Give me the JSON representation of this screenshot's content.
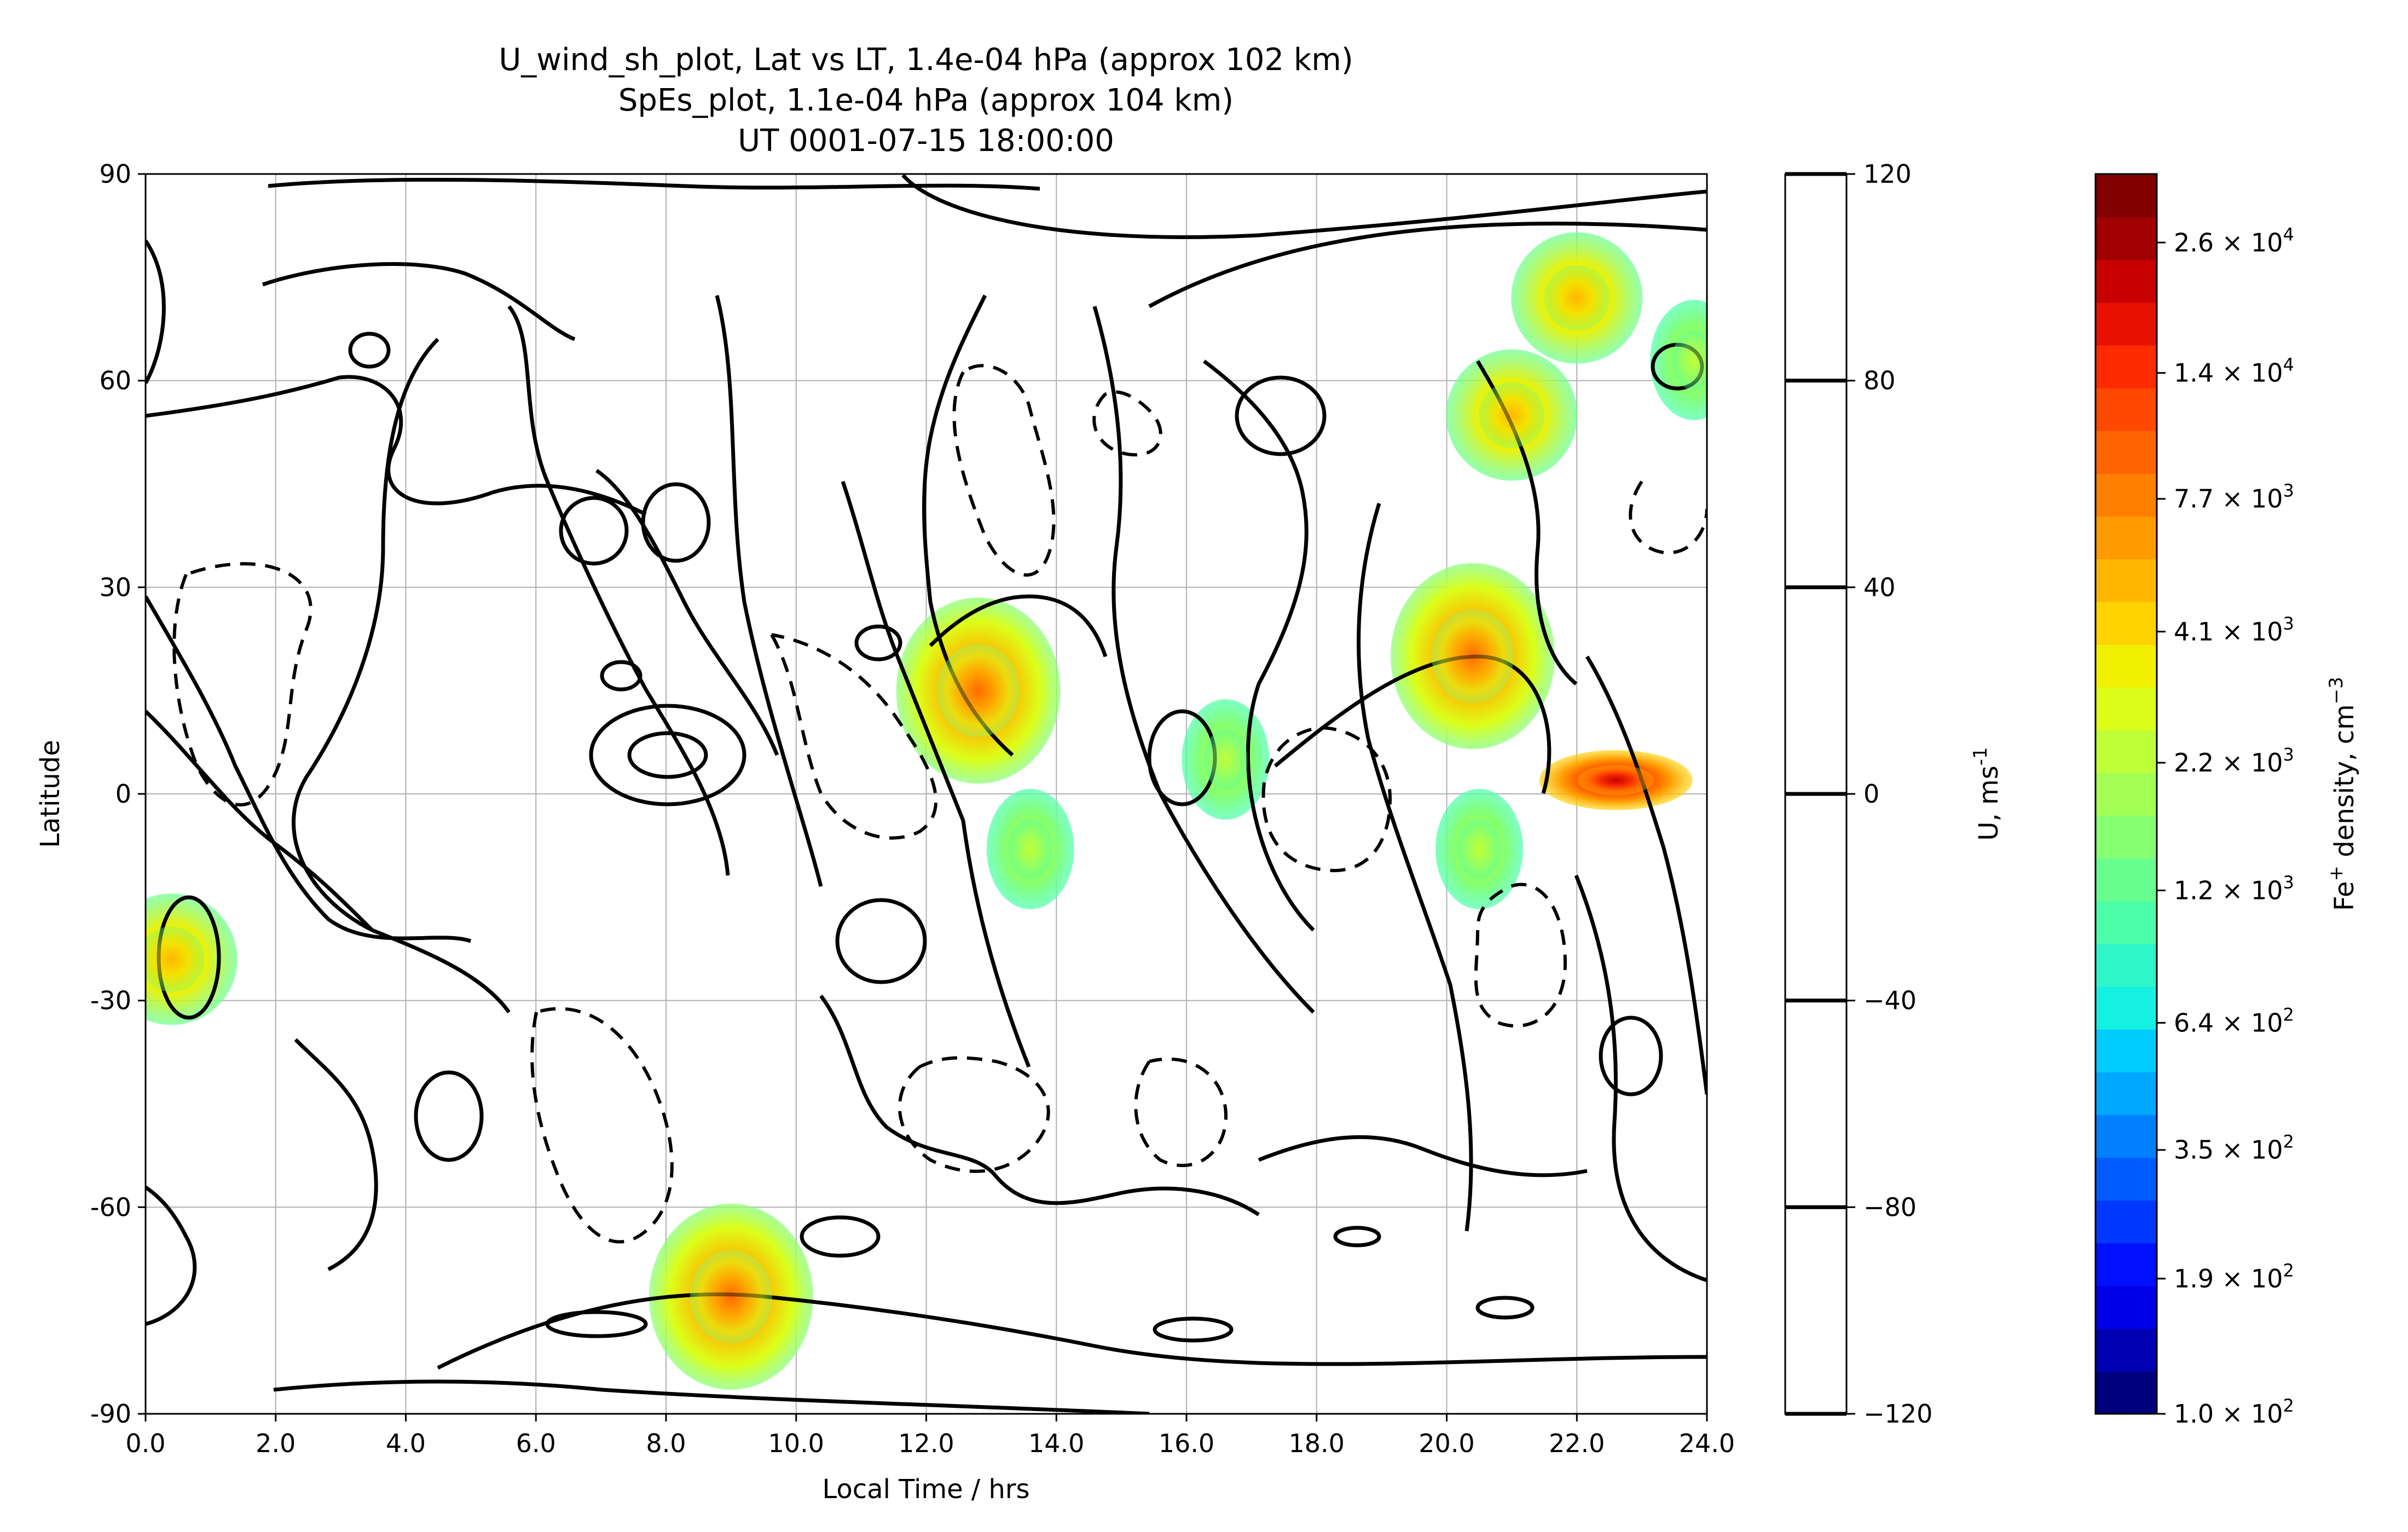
{
  "chart_data": {
    "type": "heatmap",
    "title_lines": [
      "U_wind_sh_plot, Lat vs LT, 1.4e-04 hPa (approx 102 km)",
      "SpEs_plot, 1.1e-04 hPa (approx 104 km)",
      "UT 0001-07-15 18:00:00"
    ],
    "xlabel": "Local Time / hrs",
    "ylabel": "Latitude",
    "xlim": [
      0,
      24
    ],
    "ylim": [
      -90,
      90
    ],
    "xticks": [
      "0.0",
      "2.0",
      "4.0",
      "6.0",
      "8.0",
      "10.0",
      "12.0",
      "14.0",
      "16.0",
      "18.0",
      "20.0",
      "22.0",
      "24.0"
    ],
    "yticks": [
      "-90",
      "-60",
      "-30",
      "0",
      "30",
      "60",
      "90"
    ],
    "grid": true,
    "wind_colorbar": {
      "label": "U, ms",
      "label_sup": "-1",
      "range": [
        -120,
        120
      ],
      "ticks": [
        "−120",
        "−80",
        "−40",
        "0",
        "40",
        "80",
        "120"
      ]
    },
    "density_colorbar": {
      "label_prefix": "Fe",
      "label_sup1": "+",
      "label_mid": " density, cm",
      "label_sup2": "−3",
      "ticks": [
        {
          "mant": "1.0",
          "exp": "2"
        },
        {
          "mant": "1.9",
          "exp": "2"
        },
        {
          "mant": "3.5",
          "exp": "2"
        },
        {
          "mant": "6.4",
          "exp": "2"
        },
        {
          "mant": "1.2",
          "exp": "3"
        },
        {
          "mant": "2.2",
          "exp": "3"
        },
        {
          "mant": "4.1",
          "exp": "3"
        },
        {
          "mant": "7.7",
          "exp": "3"
        },
        {
          "mant": "1.4",
          "exp": "4"
        },
        {
          "mant": "2.6",
          "exp": "4"
        }
      ],
      "colors": [
        "#00007f",
        "#0000b2",
        "#0000e8",
        "#0010ff",
        "#0038ff",
        "#005cff",
        "#0080ff",
        "#00a8ff",
        "#00ccff",
        "#14f0e2",
        "#2ff6c8",
        "#4cffab",
        "#69ff8e",
        "#86ff71",
        "#a3ff54",
        "#c0ff37",
        "#dcff1a",
        "#f0f000",
        "#ffd200",
        "#ffb600",
        "#ff9a00",
        "#ff7f00",
        "#ff6400",
        "#ff4800",
        "#ff2b00",
        "#e81000",
        "#c80000",
        "#a00000",
        "#800000"
      ]
    },
    "density_patches": [
      {
        "lt": 12.8,
        "lat": 15,
        "level": "high"
      },
      {
        "lt": 20.4,
        "lat": 20,
        "level": "high"
      },
      {
        "lt": 22.6,
        "lat": 2,
        "level": "peak"
      },
      {
        "lt": 9.0,
        "lat": -73,
        "level": "high"
      },
      {
        "lt": 0.4,
        "lat": -24,
        "level": "mid"
      },
      {
        "lt": 22.0,
        "lat": 72,
        "level": "mid"
      },
      {
        "lt": 21.0,
        "lat": 55,
        "level": "mid"
      },
      {
        "lt": 16.6,
        "lat": 5,
        "level": "low"
      },
      {
        "lt": 13.6,
        "lat": -8,
        "level": "low"
      },
      {
        "lt": 20.5,
        "lat": -8,
        "level": "low"
      },
      {
        "lt": 23.8,
        "lat": 63,
        "level": "low"
      }
    ]
  }
}
